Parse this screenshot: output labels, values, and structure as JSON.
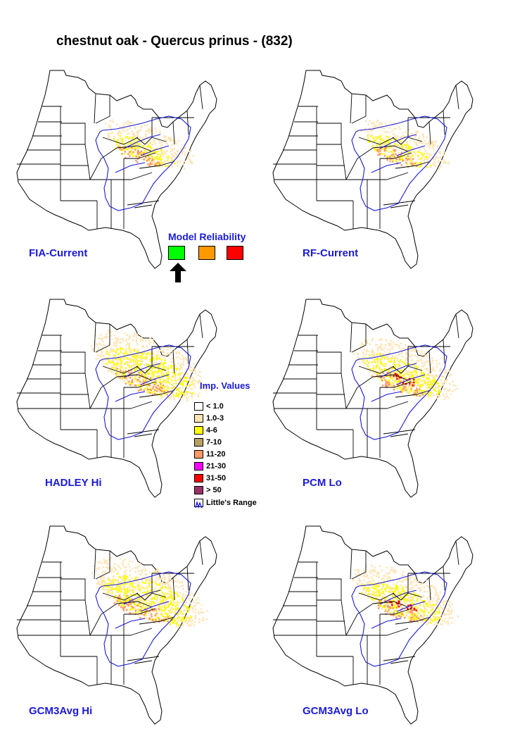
{
  "title": "chestnut oak - Quercus prinus - (832)",
  "maps": [
    {
      "label": "FIA-Current",
      "style": "current"
    },
    {
      "label": "RF-Current",
      "style": "current"
    },
    {
      "label": "HADLEY Hi",
      "style": "future"
    },
    {
      "label": "PCM Lo",
      "style": "future-lo"
    },
    {
      "label": "GCM3Avg Hi",
      "style": "future"
    },
    {
      "label": "GCM3Avg Lo",
      "style": "future-lo"
    }
  ],
  "model_reliability": {
    "title": "Model Reliability",
    "levels": [
      {
        "color": "#00ff00",
        "icon": "reliability-high",
        "selected": true
      },
      {
        "color": "#ff9900",
        "icon": "reliability-medium",
        "selected": false
      },
      {
        "color": "#ff0000",
        "icon": "reliability-low",
        "selected": false
      }
    ],
    "indicator_icon": "up-arrow-icon"
  },
  "legend": {
    "title": "Imp. Values",
    "items": [
      {
        "label": "< 1.0",
        "color": "#ffffff"
      },
      {
        "label": "1.0-3",
        "color": "#ffe4b5"
      },
      {
        "label": "4-6",
        "color": "#ffff00"
      },
      {
        "label": "7-10",
        "color": "#b8a060"
      },
      {
        "label": "11-20",
        "color": "#ff9966"
      },
      {
        "label": "21-30",
        "color": "#ff00ff"
      },
      {
        "label": "31-50",
        "color": "#ff0000"
      },
      {
        "label": "> 50",
        "color": "#993366"
      },
      {
        "label": "Little's Range",
        "color": "#0000ff"
      }
    ]
  },
  "colors": {
    "label_blue": "#1a1ad6",
    "range_line": "#1a1ad6",
    "state_line": "#000000"
  }
}
